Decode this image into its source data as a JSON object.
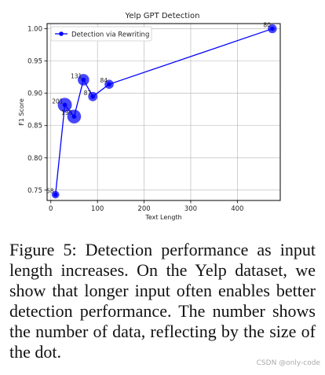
{
  "chart_data": {
    "type": "scatter",
    "title": "Yelp GPT Detection",
    "xlabel": "Text Length",
    "ylabel": "F1 Score",
    "xlim": [
      -8,
      492
    ],
    "ylim": [
      0.734,
      1.008
    ],
    "xticks": [
      0,
      100,
      200,
      300,
      400
    ],
    "yticks": [
      0.75,
      0.8,
      0.85,
      0.9,
      0.95,
      1.0
    ],
    "ytick_labels": [
      "0.75",
      "0.80",
      "0.85",
      "0.90",
      "0.95",
      "1.00"
    ],
    "grid": true,
    "legend": {
      "entry": "Detection via Rewriting",
      "placement": "top-left"
    },
    "series": [
      {
        "name": "Detection via Rewriting",
        "points": [
          {
            "x": 10,
            "y": 0.743,
            "label": "58",
            "count": 58
          },
          {
            "x": 30,
            "y": 0.882,
            "label": "201",
            "count": 201
          },
          {
            "x": 50,
            "y": 0.864,
            "label": "190",
            "count": 190
          },
          {
            "x": 70,
            "y": 0.921,
            "label": "131",
            "count": 131
          },
          {
            "x": 90,
            "y": 0.895,
            "label": "87",
            "count": 87
          },
          {
            "x": 125,
            "y": 0.914,
            "label": "84",
            "count": 84
          },
          {
            "x": 475,
            "y": 1.0,
            "label": "80",
            "count": 80
          }
        ]
      }
    ],
    "colors": {
      "line": "#0000ff"
    }
  },
  "caption": "Figure 5:  Detection performance as input length increases.  On the Yelp dataset, we show that longer input often enables better detection performance. The number shows the number of data, reflecting by the size of the dot.",
  "watermark": "CSDN @only-code"
}
